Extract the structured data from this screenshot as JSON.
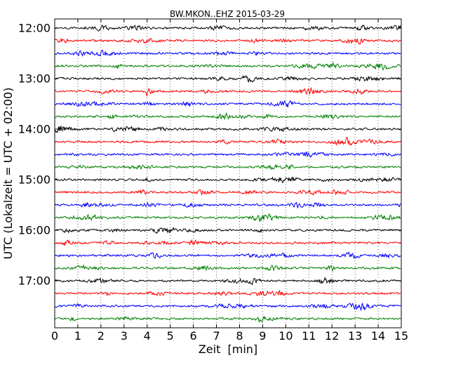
{
  "chart_data": {
    "type": "line",
    "title": "BW.MKON..EHZ 2015-03-29",
    "xlabel": "Zeit  [min]",
    "ylabel": "UTC (Lokalzeit = UTC + 02:00)",
    "xlim": [
      0,
      15
    ],
    "x_ticks": [
      "0",
      "1",
      "2",
      "3",
      "4",
      "5",
      "6",
      "7",
      "8",
      "9",
      "10",
      "11",
      "12",
      "13",
      "14",
      "15"
    ],
    "y_tick_labels": [
      "12:00",
      "13:00",
      "14:00",
      "15:00",
      "16:00",
      "17:00"
    ],
    "grid": "x dotted",
    "trace_minutes_per_row": 15,
    "trace_colors": [
      "#000000",
      "#ff0000",
      "#0000ff",
      "#008000"
    ],
    "traces": [
      {
        "start": "12:00",
        "color": "#000000"
      },
      {
        "start": "12:15",
        "color": "#ff0000"
      },
      {
        "start": "12:30",
        "color": "#0000ff"
      },
      {
        "start": "12:45",
        "color": "#008000"
      },
      {
        "start": "13:00",
        "color": "#000000"
      },
      {
        "start": "13:15",
        "color": "#ff0000"
      },
      {
        "start": "13:30",
        "color": "#0000ff"
      },
      {
        "start": "13:45",
        "color": "#008000"
      },
      {
        "start": "14:00",
        "color": "#000000"
      },
      {
        "start": "14:15",
        "color": "#ff0000"
      },
      {
        "start": "14:30",
        "color": "#0000ff"
      },
      {
        "start": "14:45",
        "color": "#008000"
      },
      {
        "start": "15:00",
        "color": "#000000"
      },
      {
        "start": "15:15",
        "color": "#ff0000"
      },
      {
        "start": "15:30",
        "color": "#0000ff"
      },
      {
        "start": "15:45",
        "color": "#008000"
      },
      {
        "start": "16:00",
        "color": "#000000"
      },
      {
        "start": "16:15",
        "color": "#ff0000"
      },
      {
        "start": "16:30",
        "color": "#0000ff"
      },
      {
        "start": "16:45",
        "color": "#008000"
      },
      {
        "start": "17:00",
        "color": "#000000"
      },
      {
        "start": "17:15",
        "color": "#ff0000"
      },
      {
        "start": "17:30",
        "color": "#0000ff"
      },
      {
        "start": "17:45",
        "color": "#008000"
      }
    ]
  }
}
